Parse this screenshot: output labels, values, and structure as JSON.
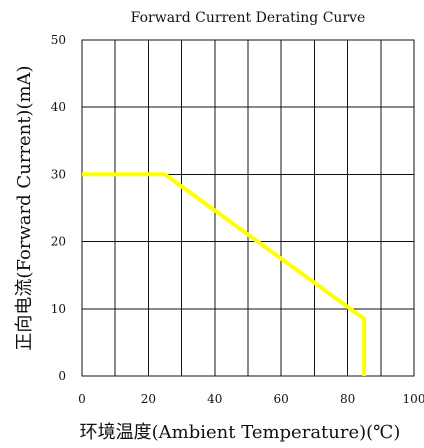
{
  "chart_data": {
    "type": "line",
    "title": "Forward Current Derating Curve",
    "xlabel": "环境温度(Ambient Temperature)(℃)",
    "ylabel": "正向电流(Forward Current)(mA)",
    "xlim": [
      0,
      100
    ],
    "ylim": [
      0,
      50
    ],
    "x_ticks": [
      0,
      20,
      40,
      60,
      80,
      100
    ],
    "y_ticks": [
      0,
      10,
      20,
      30,
      40,
      50
    ],
    "grid": true,
    "series": [
      {
        "color": "#ffff00",
        "points": [
          {
            "x": 0,
            "y": 30
          },
          {
            "x": 25,
            "y": 30
          },
          {
            "x": 85,
            "y": 8.5
          },
          {
            "x": 85,
            "y": 0
          }
        ]
      }
    ]
  }
}
